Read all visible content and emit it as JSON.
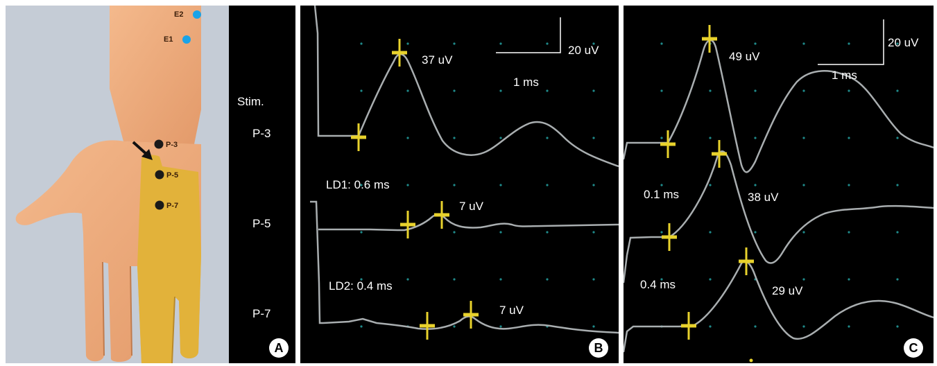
{
  "colors": {
    "background": "#000000",
    "trace": "#a9aeb0",
    "cursor": "#e8d22c",
    "grid_dot": "#1f8a8a",
    "electrode": "#1aa3e8",
    "stim_point": "#1a1a1a",
    "palm_shade": "#e2b23a",
    "text": "#ffffff"
  },
  "panel_a": {
    "badge": "A",
    "electrodes": [
      "E2",
      "E1"
    ],
    "stim_points": [
      "P-3",
      "P-5",
      "P-7"
    ],
    "stim_header": "Stim.",
    "stim_labels": [
      "P-3",
      "P-5",
      "P-7"
    ],
    "arrow_icon": "arrow-icon"
  },
  "panel_b": {
    "badge": "B",
    "scale": {
      "amplitude": "20 uV",
      "time": "1 ms"
    },
    "annotations": {
      "amp1": "37 uV",
      "ld1": "LD1: 0.6 ms",
      "amp2": "7 uV",
      "ld2": "LD2: 0.4 ms",
      "amp3": "7 uV"
    }
  },
  "panel_c": {
    "badge": "C",
    "scale": {
      "amplitude": "20 uV",
      "time": "1 ms"
    },
    "annotations": {
      "amp1": "49 uV",
      "lat1": "0.1 ms",
      "amp2": "38 uV",
      "lat2": "0.4 ms",
      "amp3": "29 uV"
    }
  }
}
